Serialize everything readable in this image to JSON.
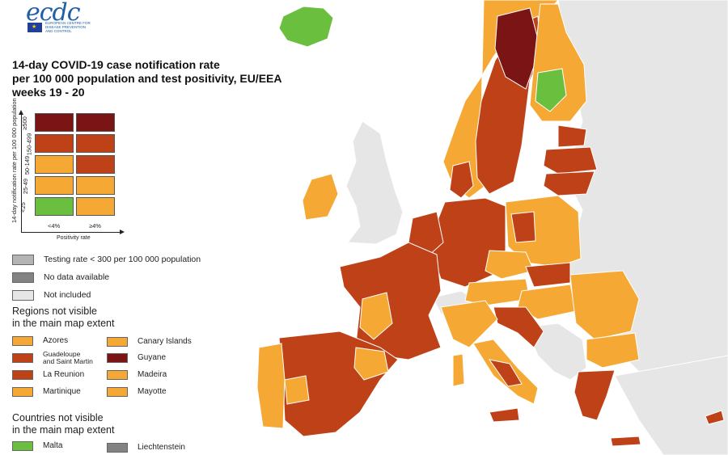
{
  "logo": {
    "text": "ecdc",
    "subtitle_lines": [
      "EUROPEAN CENTRE FOR",
      "DISEASE PREVENTION",
      "AND CONTROL"
    ]
  },
  "title": {
    "line1": "14-day COVID-19 case notification rate",
    "line2": "per 100 000 population and test positivity, EU/EEA",
    "line3": "weeks 19 - 20"
  },
  "matrix": {
    "y_axis_title": "14-day notification rate per 100 000 population",
    "x_axis_title": "Positivity rate",
    "rate_bands": [
      "≥500",
      "150-499",
      "50-149",
      "25-49",
      "<25"
    ],
    "positivity_bands": [
      "<4%",
      "≥4%"
    ],
    "colors": {
      "dark_red": "#7b1414",
      "red": "#bf4118",
      "orange": "#f5a833",
      "green": "#6abf3e"
    },
    "cells": [
      [
        "dark_red",
        "dark_red"
      ],
      [
        "red",
        "red"
      ],
      [
        "orange",
        "red"
      ],
      [
        "orange",
        "orange"
      ],
      [
        "green",
        "orange"
      ]
    ]
  },
  "legend": {
    "testing_rate": {
      "label": "Testing rate < 300 per 100 000 population",
      "color": "#b4b4b4"
    },
    "no_data": {
      "label": "No data available",
      "color": "#828282"
    },
    "not_included": {
      "label": "Not included",
      "color": "#e6e6e6"
    }
  },
  "regions_section": {
    "heading_line1": "Regions not visible",
    "heading_line2": "in the main map extent",
    "left": [
      {
        "label": "Azores",
        "color": "#f5a833"
      },
      {
        "label_line1": "Guadeloupe",
        "label_line2": "and Saint Martin",
        "color": "#bf4118"
      },
      {
        "label": "La Reunion",
        "color": "#bf4118"
      },
      {
        "label": "Martinique",
        "color": "#f5a833"
      }
    ],
    "right": [
      {
        "label": "Canary Islands",
        "color": "#f5a833"
      },
      {
        "label": "Guyane",
        "color": "#7b1414"
      },
      {
        "label": "Madeira",
        "color": "#f5a833"
      },
      {
        "label": "Mayotte",
        "color": "#f5a833"
      }
    ]
  },
  "countries_section": {
    "heading_line1": "Countries not visible",
    "heading_line2": "in the main map extent",
    "items": [
      {
        "label": "Malta",
        "color": "#6abf3e"
      },
      {
        "label": "Liechtenstein",
        "color": "#828282"
      }
    ]
  },
  "map_colors": {
    "non_eu_land": "#e6e6e6",
    "border": "#ffffff",
    "dark_red": "#7b1414",
    "red": "#bf4118",
    "orange": "#f5a833",
    "green": "#6abf3e"
  }
}
